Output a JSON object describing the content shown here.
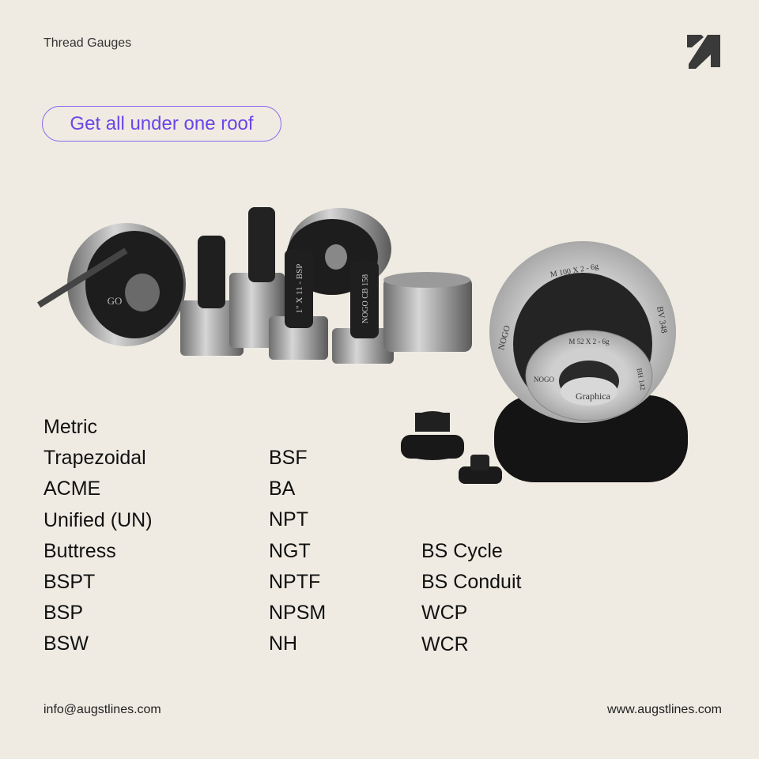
{
  "header": {
    "title": "Thread Gauges",
    "logo": "augstlines-arrow-logo"
  },
  "cta": {
    "label": "Get all under one roof",
    "color": "#6a45e8"
  },
  "product_image": {
    "lettering": [
      "M 100 X 2 - 6g",
      "NOGO",
      "BV 348",
      "M 52 X 2 - 6g",
      "BH 142",
      "Graphica",
      "GO",
      "NOGO CB 158",
      "1\" X 11 - BSP"
    ]
  },
  "thread_types": {
    "column1": [
      "Metric",
      "Trapezoidal",
      "ACME",
      "Unified (UN)",
      "Buttress",
      "BSPT",
      "BSP",
      "BSW"
    ],
    "column2": [
      "BSF",
      "BA",
      "NPT",
      "NGT",
      "NPTF",
      "NPSM",
      "NH"
    ],
    "column3": [
      "BS Cycle",
      "BS Conduit",
      "WCP",
      "WCR"
    ]
  },
  "footer": {
    "email": "info@augstlines.com",
    "website": "www.augstlines.com"
  },
  "colors": {
    "background": "#efebe2",
    "accent": "#6a45e8",
    "logo": "#3a3a3a"
  }
}
